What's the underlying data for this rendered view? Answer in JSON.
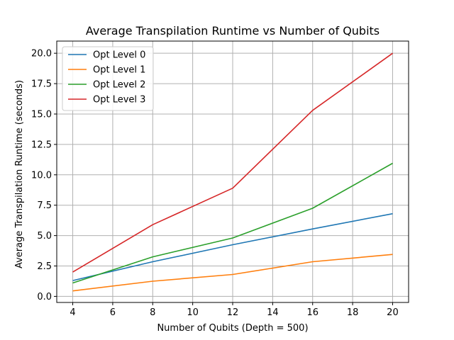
{
  "chart_data": {
    "type": "line",
    "title": "Average Transpilation Runtime vs Number of Qubits",
    "xlabel": "Number of Qubits (Depth = 500)",
    "ylabel": "Average Transpilation Runtime (seconds)",
    "x": [
      4,
      8,
      12,
      16,
      20
    ],
    "xlim": [
      3.2,
      20.8
    ],
    "ylim": [
      -0.5,
      21.0
    ],
    "xticks": [
      4,
      6,
      8,
      10,
      12,
      14,
      16,
      18,
      20
    ],
    "yticks": [
      0.0,
      2.5,
      5.0,
      7.5,
      10.0,
      12.5,
      15.0,
      17.5,
      20.0
    ],
    "xtick_labels": [
      "4",
      "6",
      "8",
      "10",
      "12",
      "14",
      "16",
      "18",
      "20"
    ],
    "ytick_labels": [
      "0.0",
      "2.5",
      "5.0",
      "7.5",
      "10.0",
      "12.5",
      "15.0",
      "17.5",
      "20.0"
    ],
    "grid": true,
    "legend_position": "top-left",
    "series": [
      {
        "name": "Opt Level 0",
        "color": "#1f77b4",
        "values": [
          1.3,
          2.85,
          4.25,
          5.55,
          6.8
        ]
      },
      {
        "name": "Opt Level 1",
        "color": "#ff7f0e",
        "values": [
          0.45,
          1.25,
          1.8,
          2.85,
          3.45
        ]
      },
      {
        "name": "Opt Level 2",
        "color": "#2ca02c",
        "values": [
          1.1,
          3.25,
          4.8,
          7.25,
          10.95
        ]
      },
      {
        "name": "Opt Level 3",
        "color": "#d62728",
        "values": [
          2.0,
          5.9,
          8.9,
          15.3,
          20.0
        ]
      }
    ]
  }
}
